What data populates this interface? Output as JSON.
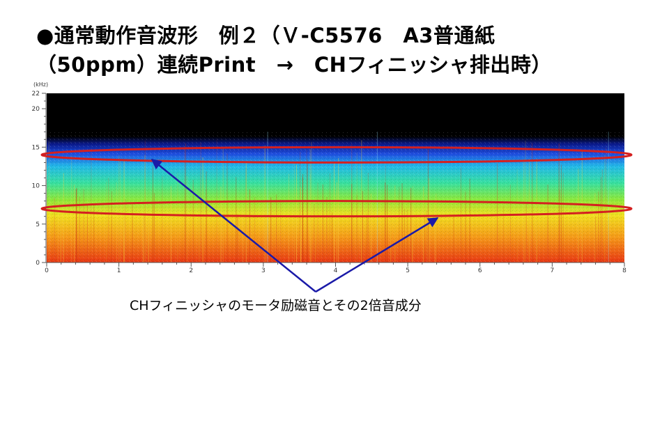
{
  "slide": {
    "title_line1": "●通常動作音波形　例２（Ｖ-C5576　A3普通紙",
    "title_line2": "（50ppm）連続Print　→　CHフィニッシャ排出時）"
  },
  "chart_data": {
    "type": "heatmap",
    "subtype": "spectrogram",
    "title": "",
    "xlabel": "",
    "ylabel": "(kHz)",
    "xlim": [
      0,
      8
    ],
    "ylim": [
      0,
      22
    ],
    "x_ticks": [
      "0",
      "1",
      "2",
      "3",
      "4",
      "5",
      "6",
      "7",
      "8"
    ],
    "y_ticks": [
      "0",
      "5",
      "10",
      "15",
      "20",
      "22"
    ],
    "energy_profile_by_frequency_khz": [
      {
        "freq": 0,
        "level": 0.95
      },
      {
        "freq": 3,
        "level": 0.85
      },
      {
        "freq": 5,
        "level": 0.72
      },
      {
        "freq": 7,
        "level": 0.6
      },
      {
        "freq": 9,
        "level": 0.48
      },
      {
        "freq": 11,
        "level": 0.38
      },
      {
        "freq": 13,
        "level": 0.28
      },
      {
        "freq": 15,
        "level": 0.14
      },
      {
        "freq": 16,
        "level": 0.04
      },
      {
        "freq": 17,
        "level": 0.0
      },
      {
        "freq": 22,
        "level": 0.0
      }
    ],
    "highlighted_bands_khz": [
      14,
      7
    ],
    "highlight_color": "#d42020",
    "arrow_color": "#1a1aa8",
    "colormap": [
      "#000000",
      "#0a1a8c",
      "#1f4fe0",
      "#22b8e8",
      "#38e0a0",
      "#8ee83a",
      "#f0e020",
      "#f59a18",
      "#e83814"
    ],
    "annotation": "CHフィニッシャのモータ励磁音とその2倍音成分"
  }
}
